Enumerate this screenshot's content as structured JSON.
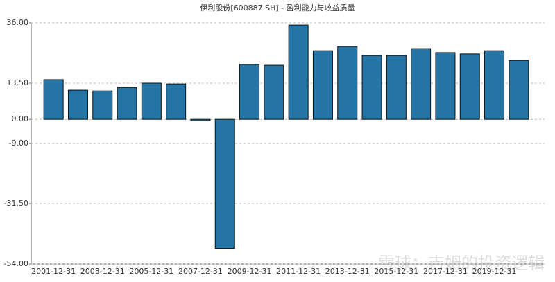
{
  "chart_data": {
    "type": "bar",
    "title": "伊利股份[600887.SH] - 盈利能力与收益质量",
    "categories": [
      "2001-12-31",
      null,
      "2003-12-31",
      null,
      "2005-12-31",
      null,
      "2007-12-31",
      null,
      "2009-12-31",
      null,
      "2011-12-31",
      null,
      "2013-12-31",
      null,
      "2015-12-31",
      null,
      "2017-12-31",
      null,
      "2019-12-31",
      null
    ],
    "values": [
      14.8,
      10.9,
      10.6,
      11.9,
      13.5,
      13.2,
      -0.5,
      -48.2,
      20.5,
      20.2,
      35.2,
      25.6,
      27.2,
      23.8,
      23.8,
      26.4,
      24.9,
      24.4,
      25.6,
      22.0
    ],
    "color": "#2475a5",
    "ylim": [
      -54,
      36
    ],
    "yticks": [
      {
        "value": 36,
        "label": "36.00"
      },
      {
        "value": 13.5,
        "label": "13.50"
      },
      {
        "value": 0,
        "label": "0.00"
      },
      {
        "value": -9,
        "label": "-9.00"
      },
      {
        "value": -31.5,
        "label": "-31.50"
      },
      {
        "value": -54,
        "label": "-54.00"
      }
    ],
    "grid": true,
    "watermark": "雪球：吉姆的投资逻辑"
  }
}
